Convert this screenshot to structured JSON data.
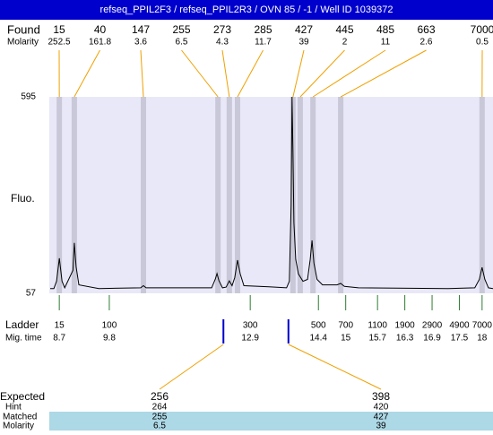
{
  "header": {
    "title": "refseq_PPIL2F3 / refseq_PPIL2R3 / OVN 85 / -1 / Well ID 1039372"
  },
  "found": {
    "label": "Found",
    "molarity_label": "Molarity",
    "peaks": [
      {
        "size": 15,
        "molarity": 252.5,
        "mig_time": 8.7
      },
      {
        "size": 40,
        "molarity": 161.8,
        "mig_time": 9.03
      },
      {
        "size": 147,
        "molarity": 3.6,
        "mig_time": 10.55
      },
      {
        "size": 255,
        "molarity": 6.5,
        "mig_time": 12.19
      },
      {
        "size": 273,
        "molarity": 4.3,
        "mig_time": 12.44
      },
      {
        "size": 285,
        "molarity": 11.7,
        "mig_time": 12.62
      },
      {
        "size": 427,
        "molarity": 39,
        "mig_time": 13.84
      },
      {
        "size": 445,
        "molarity": 2,
        "mig_time": 14.0
      },
      {
        "size": 485,
        "molarity": 11,
        "mig_time": 14.28
      },
      {
        "size": 663,
        "molarity": 2.6,
        "mig_time": 14.89
      },
      {
        "size": 7000,
        "molarity": 0.5,
        "mig_time": 18.0
      }
    ]
  },
  "chart_data": {
    "type": "line",
    "ylabel": "Fluo.",
    "ylim": [
      57,
      595
    ],
    "yticks": [
      57,
      595
    ],
    "xlim": [
      8.48,
      18.24
    ],
    "color": "#000000",
    "band_color": "#e8e8f8",
    "x": [
      8.5,
      8.58,
      8.64,
      8.7,
      8.76,
      8.82,
      9.0,
      9.03,
      9.07,
      9.13,
      9.57,
      10.49,
      10.55,
      10.61,
      12.05,
      12.13,
      12.17,
      12.21,
      12.29,
      12.37,
      12.44,
      12.5,
      12.56,
      12.62,
      12.68,
      12.76,
      13.31,
      13.7,
      13.76,
      13.8,
      13.82,
      13.84,
      13.86,
      13.9,
      13.96,
      14.06,
      14.16,
      14.22,
      14.26,
      14.3,
      14.37,
      14.49,
      14.81,
      14.89,
      14.97,
      15.28,
      17.25,
      17.84,
      17.94,
      18.0,
      18.06,
      18.14,
      18.24
    ],
    "values": [
      70,
      70,
      90,
      153,
      90,
      72,
      120,
      195,
      130,
      80,
      70,
      72,
      78,
      72,
      72,
      95,
      111,
      92,
      72,
      74,
      91,
      78,
      100,
      148,
      110,
      78,
      75,
      72,
      90,
      300,
      595,
      450,
      250,
      150,
      110,
      90,
      95,
      150,
      202,
      140,
      95,
      80,
      80,
      84,
      76,
      72,
      70,
      72,
      95,
      128,
      95,
      72,
      70
    ]
  },
  "ladder": {
    "label": "Ladder",
    "time_label": "Mig. time",
    "items": [
      {
        "size": 15,
        "time": 8.7
      },
      {
        "size": 100,
        "time": 9.8
      },
      {
        "size": 300,
        "time": 12.9
      },
      {
        "size": 500,
        "time": 14.4
      },
      {
        "size": 700,
        "time": 15
      },
      {
        "size": 1100,
        "time": 15.7
      },
      {
        "size": 1900,
        "time": 16.3
      },
      {
        "size": 2900,
        "time": 16.9
      },
      {
        "size": 4900,
        "time": 17.5
      },
      {
        "size": 7000,
        "time": 18
      }
    ]
  },
  "expected": {
    "labels": [
      "Expected",
      "Hint",
      "Matched",
      "Molarity"
    ],
    "items": [
      {
        "expected": 256,
        "hint": 264,
        "matched": 255,
        "molarity": 6.5,
        "mig_time": 12.31
      },
      {
        "expected": 398,
        "hint": 420,
        "matched": 427,
        "molarity": 39,
        "mig_time": 13.74
      }
    ]
  }
}
